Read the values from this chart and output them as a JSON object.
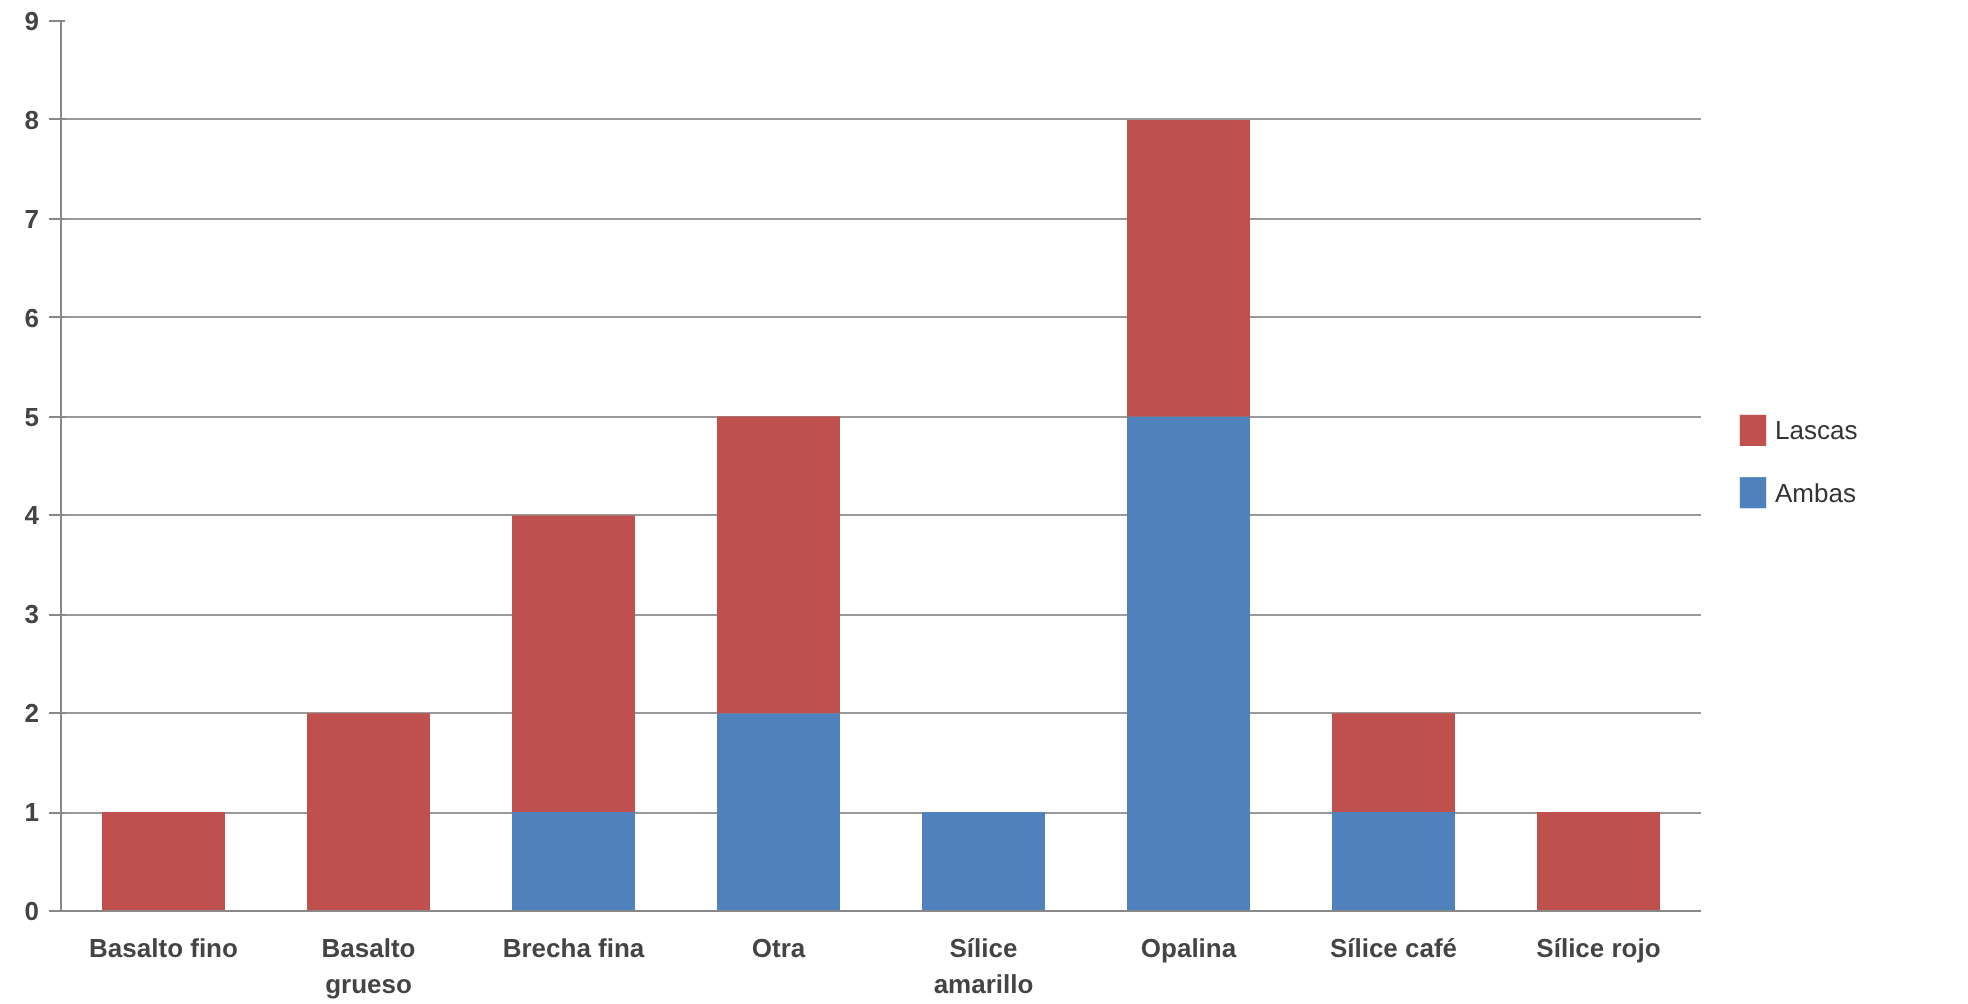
{
  "chart_data": {
    "type": "bar",
    "stacked": true,
    "categories": [
      "Basalto fino",
      "Basalto grueso",
      "Brecha fina",
      "Otra",
      "Sílice amarillo",
      "Opalina",
      "Sílice café",
      "Sílice rojo"
    ],
    "series": [
      {
        "name": "Ambas",
        "color": "#4f81bd",
        "values": [
          0,
          0,
          1,
          2,
          1,
          5,
          1,
          0
        ]
      },
      {
        "name": "Lascas",
        "color": "#c0504d",
        "values": [
          1,
          2,
          3,
          3,
          0,
          3,
          1,
          1
        ]
      }
    ],
    "ylim": [
      0,
      9
    ],
    "yticks": [
      0,
      1,
      2,
      3,
      4,
      5,
      6,
      7,
      8,
      9
    ],
    "grid": "y",
    "legend": "right"
  }
}
